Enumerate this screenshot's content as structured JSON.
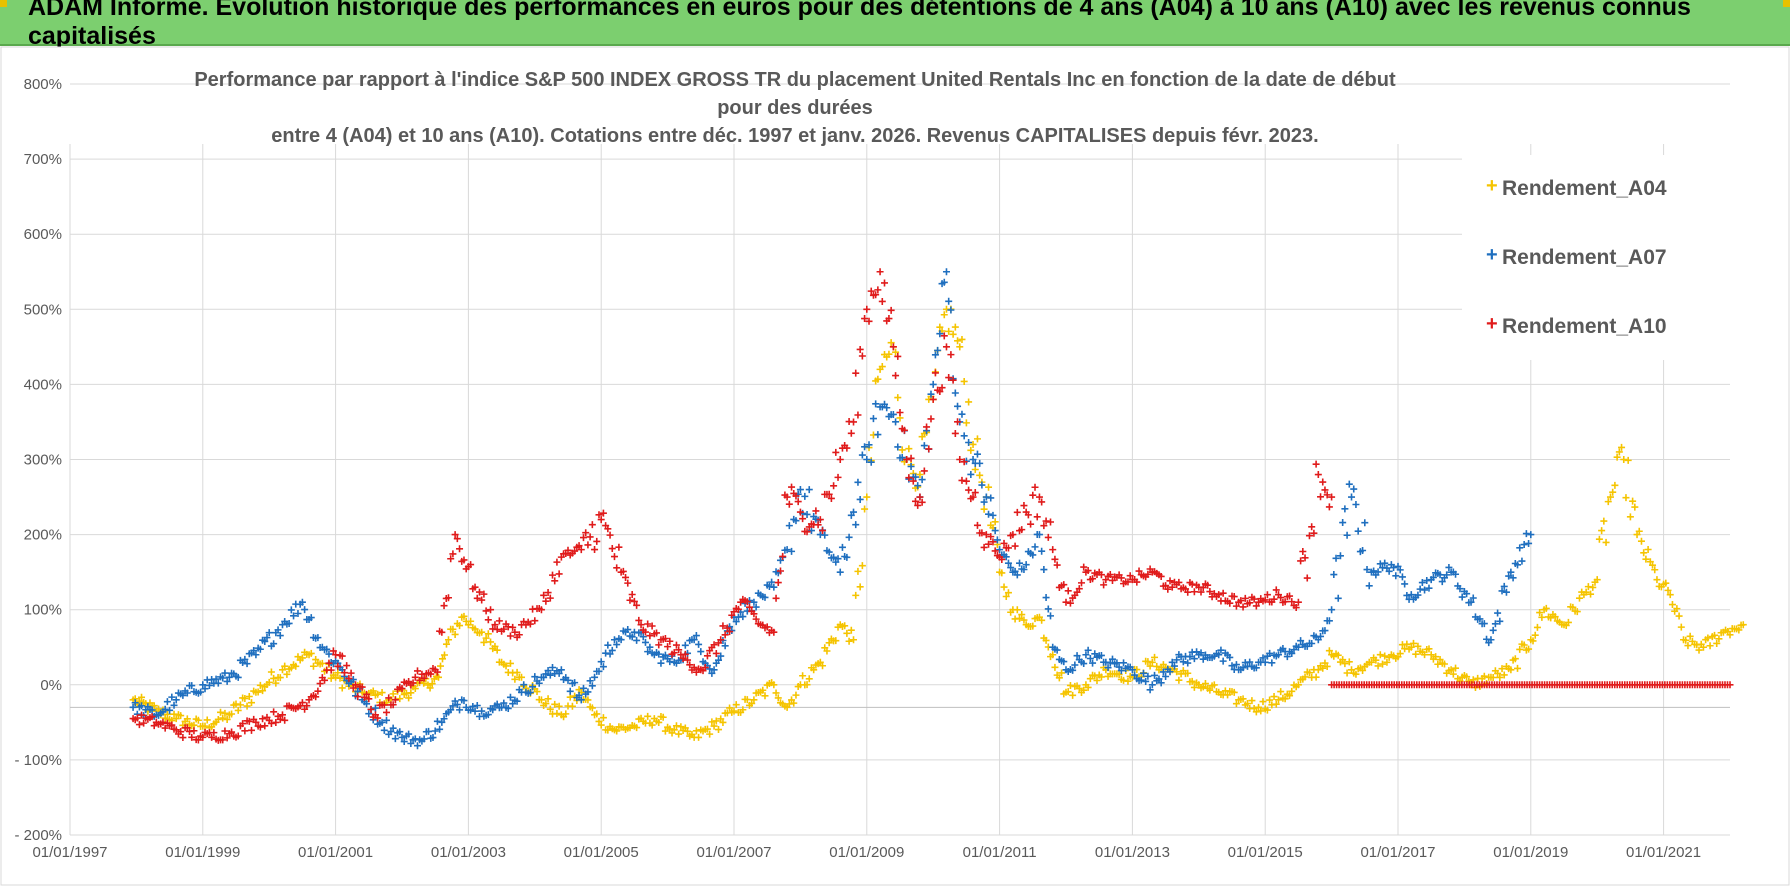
{
  "banner": {
    "title": "ADAM Informe. Evolution historique des performances en euros pour des détentions de 4 ans (A04) à 10 ans (A10) avec les revenus connus capitalisés"
  },
  "chart_data": {
    "type": "scatter",
    "title_line1": "Performance par rapport à l'indice S&P 500 INDEX GROSS TR  du placement United Rentals Inc en fonction de la date de début pour des durées",
    "title_line2": "entre 4 (A04) et 10 ans (A10). Cotations entre déc. 1997 et janv. 2026. Revenus CAPITALISES depuis févr. 2023.",
    "xlim": [
      1997.0,
      2022.0
    ],
    "ylim": [
      -200,
      800
    ],
    "y_ticks": [
      -200,
      -100,
      0,
      100,
      200,
      300,
      400,
      500,
      600,
      700,
      800
    ],
    "y_tick_labels": [
      "- 200%",
      "- 100%",
      "0%",
      "100%",
      "200%",
      "300%",
      "400%",
      "500%",
      "600%",
      "700%",
      "800%"
    ],
    "x_ticks": [
      1997,
      1999,
      2001,
      2003,
      2005,
      2007,
      2009,
      2011,
      2013,
      2015,
      2017,
      2019,
      2021
    ],
    "x_tick_labels": [
      "01/01/1997",
      "01/01/1999",
      "01/01/2001",
      "01/01/2003",
      "01/01/2005",
      "01/01/2007",
      "01/01/2009",
      "01/01/2011",
      "01/01/2013",
      "01/01/2015",
      "01/01/2017",
      "01/01/2019",
      "01/01/2021"
    ],
    "legend": [
      "Rendement_A04",
      "Rendement_A07",
      "Rendement_A10"
    ],
    "series": [
      {
        "name": "Rendement_A04",
        "color": "#f5c400",
        "x": [
          1997.95,
          1998.3,
          1998.6,
          1999.0,
          1999.4,
          1999.8,
          2000.2,
          2000.6,
          2001.0,
          2001.4,
          2001.8,
          2002.2,
          2002.55,
          2002.7,
          2002.9,
          2003.2,
          2003.5,
          2003.8,
          2004.1,
          2004.4,
          2004.7,
          2004.9,
          2005.2,
          2005.5,
          2005.8,
          2006.1,
          2006.4,
          2006.7,
          2007.0,
          2007.3,
          2007.6,
          2007.8,
          2008.0,
          2008.3,
          2008.6,
          2008.8,
          2009.0,
          2009.2,
          2009.4,
          2009.6,
          2009.8,
          2010.0,
          2010.2,
          2010.4,
          2010.6,
          2010.8,
          2011.0,
          2011.2,
          2011.4,
          2011.6,
          2011.8,
          2012.0,
          2012.3,
          2012.6,
          2013.0,
          2013.3,
          2013.6,
          2014.0,
          2014.3,
          2014.6,
          2014.9,
          2015.2,
          2015.5,
          2015.8,
          2016.0,
          2016.3,
          2016.6,
          2016.9,
          2017.2,
          2017.5,
          2017.8,
          2018.1,
          2018.4,
          2018.7,
          2019.0,
          2019.2,
          2019.5,
          2019.8,
          2020.0,
          2020.2,
          2020.4,
          2020.6,
          2020.9,
          2021.1,
          2021.3,
          2021.6,
          2021.9,
          2022.2
        ],
        "values": [
          -20,
          -35,
          -45,
          -55,
          -40,
          -10,
          20,
          40,
          10,
          -10,
          -20,
          -5,
          10,
          60,
          90,
          70,
          30,
          10,
          -20,
          -40,
          -10,
          -40,
          -60,
          -55,
          -45,
          -60,
          -70,
          -55,
          -35,
          -20,
          0,
          -30,
          0,
          30,
          80,
          60,
          250,
          420,
          450,
          300,
          280,
          380,
          500,
          450,
          320,
          250,
          150,
          100,
          80,
          90,
          40,
          -10,
          0,
          20,
          10,
          30,
          20,
          0,
          -10,
          -20,
          -30,
          -20,
          0,
          20,
          40,
          20,
          30,
          40,
          50,
          40,
          20,
          0,
          10,
          20,
          60,
          100,
          80,
          120,
          140,
          250,
          300,
          200,
          140,
          120,
          60,
          50,
          70,
          80
        ]
      },
      {
        "name": "Rendement_A07",
        "color": "#1f6fbf",
        "x": [
          1997.95,
          1998.3,
          1998.6,
          1999.0,
          1999.4,
          1999.8,
          2000.2,
          2000.5,
          2000.8,
          2001.1,
          2001.4,
          2001.7,
          2002.0,
          2002.3,
          2002.6,
          2002.9,
          2003.2,
          2003.5,
          2003.8,
          2004.1,
          2004.4,
          2004.7,
          2004.9,
          2005.2,
          2005.5,
          2005.8,
          2006.1,
          2006.4,
          2006.7,
          2007.0,
          2007.3,
          2007.6,
          2007.8,
          2008.0,
          2008.3,
          2008.6,
          2008.8,
          2009.0,
          2009.2,
          2009.4,
          2009.6,
          2009.8,
          2010.0,
          2010.2,
          2010.4,
          2010.6,
          2010.8,
          2011.0,
          2011.2,
          2011.4,
          2011.6,
          2011.8,
          2012.0,
          2012.3,
          2012.6,
          2013.0,
          2013.3,
          2013.6,
          2014.0,
          2014.3,
          2014.6,
          2014.9,
          2015.2,
          2015.5,
          2015.8,
          2016.0,
          2016.3,
          2016.6,
          2016.9,
          2017.2,
          2017.5,
          2017.8,
          2018.1,
          2018.4,
          2018.7,
          2019.0
        ],
        "values": [
          -30,
          -40,
          -20,
          0,
          10,
          40,
          80,
          110,
          50,
          20,
          -20,
          -50,
          -70,
          -75,
          -50,
          -20,
          -35,
          -30,
          -10,
          10,
          20,
          -20,
          10,
          60,
          70,
          40,
          30,
          60,
          20,
          90,
          110,
          130,
          180,
          260,
          200,
          150,
          230,
          300,
          370,
          360,
          300,
          250,
          400,
          550,
          350,
          300,
          250,
          180,
          150,
          160,
          200,
          50,
          20,
          40,
          30,
          20,
          0,
          30,
          40,
          40,
          20,
          30,
          40,
          50,
          60,
          100,
          250,
          150,
          160,
          120,
          140,
          150,
          110,
          60,
          150,
          200
        ]
      },
      {
        "name": "Rendement_A10",
        "color": "#e01b1b",
        "x": [
          1997.95,
          1998.3,
          1998.6,
          1999.0,
          1999.4,
          1999.8,
          2000.2,
          2000.6,
          2001.0,
          2001.3,
          2001.6,
          2001.9,
          2002.2,
          2002.5,
          2002.8,
          2003.1,
          2003.4,
          2003.7,
          2004.1,
          2004.4,
          2004.7,
          2005.0,
          2005.3,
          2005.6,
          2005.9,
          2006.2,
          2006.5,
          2006.8,
          2007.1,
          2007.4,
          2007.6,
          2007.8,
          2008.0,
          2008.3,
          2008.6,
          2008.8,
          2009.0,
          2009.2,
          2009.4,
          2009.6,
          2009.8,
          2010.0,
          2010.2,
          2010.4,
          2010.6,
          2010.8,
          2011.0,
          2011.2,
          2011.4,
          2011.6,
          2011.8,
          2012.0,
          2012.3,
          2012.6,
          2013.0,
          2013.3,
          2013.6,
          2014.0,
          2014.3,
          2014.6,
          2014.9,
          2015.2,
          2015.5,
          2015.8,
          2016.0
        ],
        "values": [
          -45,
          -50,
          -60,
          -70,
          -65,
          -50,
          -40,
          -20,
          40,
          0,
          -40,
          -20,
          10,
          20,
          200,
          130,
          80,
          70,
          100,
          170,
          180,
          220,
          150,
          80,
          60,
          40,
          20,
          60,
          110,
          80,
          70,
          250,
          230,
          220,
          300,
          350,
          500,
          550,
          450,
          300,
          250,
          380,
          450,
          300,
          250,
          200,
          170,
          200,
          230,
          250,
          180,
          110,
          150,
          140,
          140,
          150,
          130,
          130,
          120,
          110,
          110,
          120,
          110,
          280,
          250
        ],
        "flat_segment": {
          "x_start": 2016.0,
          "x_end": 2022.0,
          "value": 0
        }
      }
    ]
  }
}
